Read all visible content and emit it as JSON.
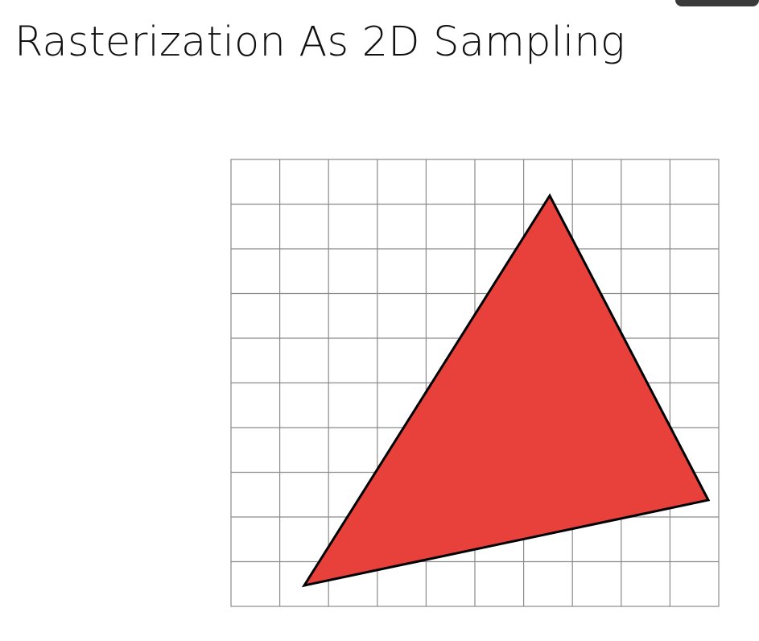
{
  "slide": {
    "title": "Rasterization As 2D Sampling"
  },
  "diagram": {
    "grid": {
      "columns": 10,
      "rows": 10,
      "line_color": "#8a8a8a"
    },
    "triangle": {
      "fill": "#e8403a",
      "stroke": "#000000"
    }
  },
  "decor": {
    "corner_tab_color": "#3a3a3a"
  }
}
